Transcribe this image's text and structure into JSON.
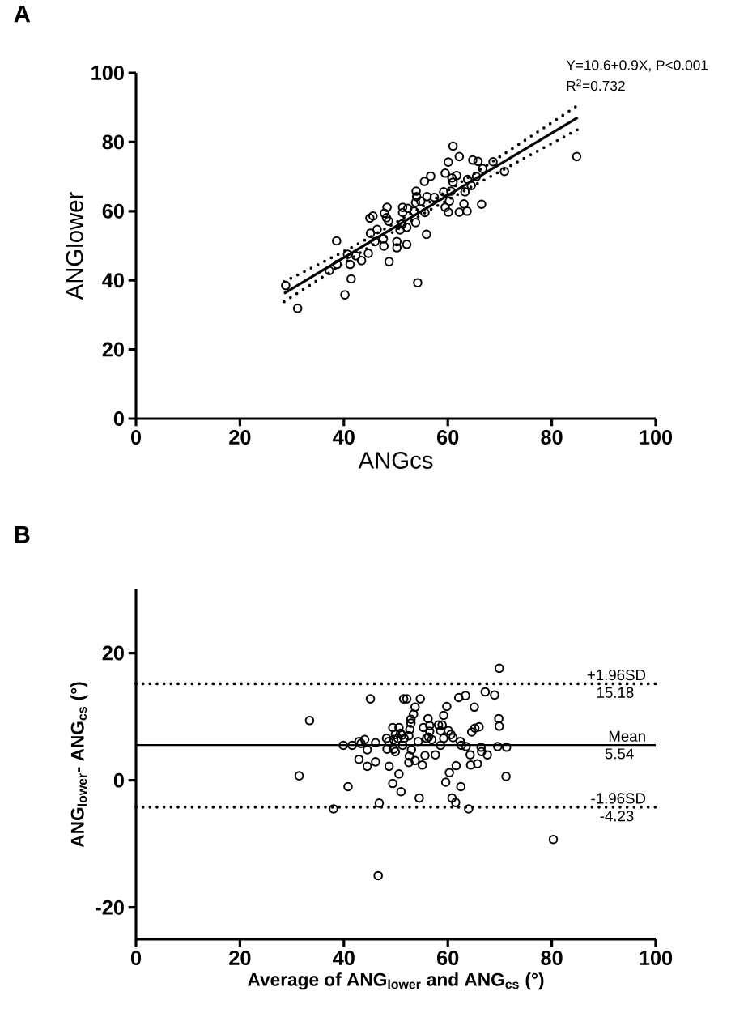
{
  "chart_data": [
    {
      "type": "scatter",
      "title": "A",
      "xlabel": "ANGcs",
      "ylabel": "ANGlower",
      "annotations": [
        "Y=10.6+0.9X, P<0.001",
        "R$^{2}$=0.732"
      ],
      "xlim": [
        0,
        100
      ],
      "ylim": [
        0,
        100
      ],
      "xticks": [
        0,
        20,
        40,
        60,
        80,
        100
      ],
      "yticks": [
        0,
        20,
        40,
        60,
        80,
        100
      ],
      "marker": "circle",
      "series": [
        {
          "color": "#000000",
          "x": [
            28.8,
            31.1,
            40.2,
            41.4,
            38.6,
            37.2,
            38.7,
            40.7,
            41.2,
            42.3,
            43.4,
            44.7,
            45.1,
            45.0,
            45.6,
            46.0,
            46.4,
            47.6,
            47.7,
            48.7,
            48.3,
            47.8,
            48.2,
            48.6,
            50.2,
            50.2,
            50.8,
            51.2,
            52.1,
            52.1,
            51.3,
            52.3,
            51.3,
            53.5,
            53.9,
            54.0,
            53.8,
            53.8,
            54.2,
            54.8,
            55.6,
            55.9,
            56.0,
            55.5,
            56.7,
            57.4,
            59.5,
            59.2,
            59.5,
            60.1,
            60.3,
            60.1,
            61.0,
            62.2,
            60.8,
            61.0,
            61.7,
            60.6,
            62.2,
            63.1,
            63.7,
            63.3,
            63.8,
            64.5,
            64.8,
            65.8,
            66.5,
            66.7,
            68.7,
            70.9,
            84.8,
            65.5
          ],
          "values": [
            38.5,
            31.9,
            35.8,
            40.4,
            51.4,
            42.8,
            44.6,
            47.5,
            44.6,
            47.1,
            45.7,
            47.8,
            53.6,
            58.0,
            58.6,
            51.2,
            54.7,
            52.0,
            49.9,
            45.4,
            61.1,
            59.4,
            58.1,
            57.1,
            51.2,
            49.4,
            54.6,
            56.3,
            50.4,
            55.3,
            61.1,
            60.8,
            59.6,
            60.0,
            65.8,
            64.2,
            62.5,
            56.7,
            39.3,
            62.9,
            59.6,
            53.3,
            64.2,
            68.6,
            70.1,
            64.0,
            71.0,
            65.6,
            61.1,
            59.7,
            62.9,
            74.2,
            78.8,
            75.8,
            69.6,
            68.4,
            70.3,
            65.8,
            59.7,
            62.1,
            60.0,
            65.6,
            69.2,
            67.4,
            74.8,
            74.4,
            62.0,
            72.3,
            74.3,
            71.5,
            75.8,
            70.0
          ]
        },
        {
          "type": "line",
          "color": "#000000",
          "marker": "none",
          "line_style": "solid",
          "x": [
            28.5,
            85
          ],
          "values": [
            36.2,
            87.1
          ]
        },
        {
          "type": "line",
          "color": "#000000",
          "marker": "none",
          "line_style": "dotted",
          "x": [
            28.5,
            35,
            42,
            50,
            56,
            64,
            72,
            80,
            85
          ],
          "values": [
            39.6,
            44.5,
            49.9,
            56.7,
            62.1,
            69.8,
            77.7,
            85.6,
            90.6
          ]
        },
        {
          "type": "line",
          "color": "#000000",
          "marker": "none",
          "line_style": "dotted",
          "x": [
            28.5,
            35,
            42,
            50,
            56,
            64,
            72,
            80,
            85
          ],
          "values": [
            33.8,
            40.1,
            46.9,
            54.5,
            59.9,
            66.6,
            73.1,
            79.6,
            83.6
          ]
        }
      ]
    },
    {
      "type": "scatter",
      "title": "B",
      "xlabel": "Average of  ANG$_{lower}$ and ANG$_{cs}$ (°)",
      "ylabel": "ANG$_{lower}$- ANG$_{cs}$ (°)",
      "xlim": [
        0,
        100
      ],
      "ylim": [
        -25,
        30
      ],
      "xticks": [
        0,
        20,
        40,
        60,
        80,
        100
      ],
      "yticks": [
        -20,
        0,
        20
      ],
      "marker": "circle",
      "annotations": [
        {
          "text": "15.18",
          "y": 15.18
        },
        {
          "text": "5.54",
          "y": 5.54
        },
        {
          "text": "-4.23",
          "y": -4.23
        }
      ],
      "ref_lines": [
        {
          "axis": "y",
          "value": 15.18,
          "label": "+1.96SD",
          "line_style": "dotted"
        },
        {
          "axis": "y",
          "value": 5.54,
          "label": "Mean",
          "line_style": "solid"
        },
        {
          "axis": "y",
          "value": -4.23,
          "label": "-1.96SD",
          "line_style": "dotted"
        }
      ],
      "series": [
        {
          "color": "#000000",
          "x": [
            69.9,
            33.4,
            31.4,
            45.1,
            51.5,
            52.1,
            54.7,
            53.7,
            53.4,
            52.9,
            52.9,
            52.7,
            52.5,
            62.1,
            63.4,
            67.2,
            69.0,
            65.1,
            59.8,
            59.2,
            56.2,
            69.8,
            69.9,
            55.3,
            56.5,
            56.5,
            58.2,
            58.9,
            58.6,
            60.1,
            64.6,
            65.2,
            66.0,
            49.4,
            50.6,
            49.9,
            50.9,
            44.0,
            42.9,
            43.3,
            39.9,
            41.6,
            46.1,
            48.2,
            48.6,
            49.6,
            50.4,
            51.2,
            51.6,
            48.3,
            49.6,
            49.9,
            51.3,
            54.3,
            55.9,
            56.9,
            56.3,
            59.2,
            60.6,
            61.0,
            58.6,
            62.4,
            62.6,
            63.5,
            66.4,
            66.5,
            67.6,
            69.6,
            71.3,
            44.5,
            42.9,
            44.5,
            46.1,
            48.7,
            50.6,
            53.0,
            52.6,
            52.5,
            53.7,
            55.1,
            55.6,
            57.6,
            60.3,
            61.6,
            64.3,
            64.4,
            65.7,
            71.2,
            38.0,
            40.8,
            46.8,
            46.6,
            49.4,
            51.0,
            54.5,
            59.6,
            60.8,
            61.5,
            62.5,
            64.0,
            80.3
          ],
          "values": [
            17.6,
            9.4,
            0.7,
            12.8,
            12.8,
            12.8,
            12.8,
            11.5,
            10.4,
            9.6,
            9.0,
            8.0,
            7.0,
            13.0,
            13.3,
            13.9,
            13.4,
            11.5,
            11.6,
            10.2,
            9.7,
            9.7,
            8.5,
            8.3,
            8.6,
            7.7,
            8.7,
            8.7,
            7.8,
            7.8,
            7.6,
            8.2,
            8.4,
            8.3,
            8.3,
            7.2,
            7.4,
            6.4,
            6.1,
            5.8,
            5.5,
            5.5,
            5.9,
            6.6,
            6.1,
            6.4,
            6.6,
            7.1,
            6.6,
            4.9,
            4.9,
            4.5,
            5.5,
            6.1,
            6.6,
            6.4,
            6.8,
            6.6,
            7.2,
            6.7,
            5.5,
            6.1,
            5.5,
            5.3,
            5.2,
            4.5,
            4.0,
            5.3,
            5.2,
            4.8,
            3.3,
            2.2,
            2.9,
            2.2,
            1.0,
            4.8,
            3.8,
            2.8,
            3.1,
            2.4,
            3.9,
            4.0,
            1.2,
            2.3,
            4.0,
            2.4,
            2.6,
            0.6,
            -4.5,
            -1.0,
            -3.6,
            -15.0,
            -0.5,
            -1.8,
            -2.8,
            -0.3,
            -2.8,
            -3.5,
            -1.0,
            -4.5,
            -9.3
          ]
        }
      ]
    }
  ]
}
